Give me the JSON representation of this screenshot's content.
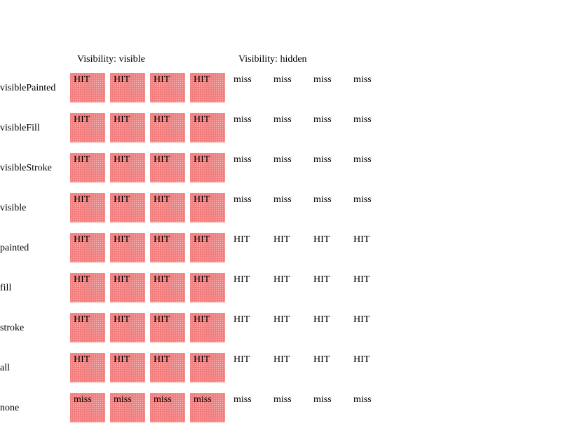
{
  "headers": {
    "visible": "Visibility: visible",
    "hidden": "Visibility: hidden"
  },
  "colors": {
    "painted_fill": "#f27c7c"
  },
  "rows": [
    {
      "label": "visiblePainted",
      "visible": [
        "HIT",
        "HIT",
        "HIT",
        "HIT"
      ],
      "hidden": [
        "miss",
        "miss",
        "miss",
        "miss"
      ]
    },
    {
      "label": "visibleFill",
      "visible": [
        "HIT",
        "HIT",
        "HIT",
        "HIT"
      ],
      "hidden": [
        "miss",
        "miss",
        "miss",
        "miss"
      ]
    },
    {
      "label": "visibleStroke",
      "visible": [
        "HIT",
        "HIT",
        "HIT",
        "HIT"
      ],
      "hidden": [
        "miss",
        "miss",
        "miss",
        "miss"
      ]
    },
    {
      "label": "visible",
      "visible": [
        "HIT",
        "HIT",
        "HIT",
        "HIT"
      ],
      "hidden": [
        "miss",
        "miss",
        "miss",
        "miss"
      ]
    },
    {
      "label": "painted",
      "visible": [
        "HIT",
        "HIT",
        "HIT",
        "HIT"
      ],
      "hidden": [
        "HIT",
        "HIT",
        "HIT",
        "HIT"
      ]
    },
    {
      "label": "fill",
      "visible": [
        "HIT",
        "HIT",
        "HIT",
        "HIT"
      ],
      "hidden": [
        "HIT",
        "HIT",
        "HIT",
        "HIT"
      ]
    },
    {
      "label": "stroke",
      "visible": [
        "HIT",
        "HIT",
        "HIT",
        "HIT"
      ],
      "hidden": [
        "HIT",
        "HIT",
        "HIT",
        "HIT"
      ]
    },
    {
      "label": "all",
      "visible": [
        "HIT",
        "HIT",
        "HIT",
        "HIT"
      ],
      "hidden": [
        "HIT",
        "HIT",
        "HIT",
        "HIT"
      ]
    },
    {
      "label": "none",
      "visible": [
        "miss",
        "miss",
        "miss",
        "miss"
      ],
      "hidden": [
        "miss",
        "miss",
        "miss",
        "miss"
      ]
    }
  ]
}
